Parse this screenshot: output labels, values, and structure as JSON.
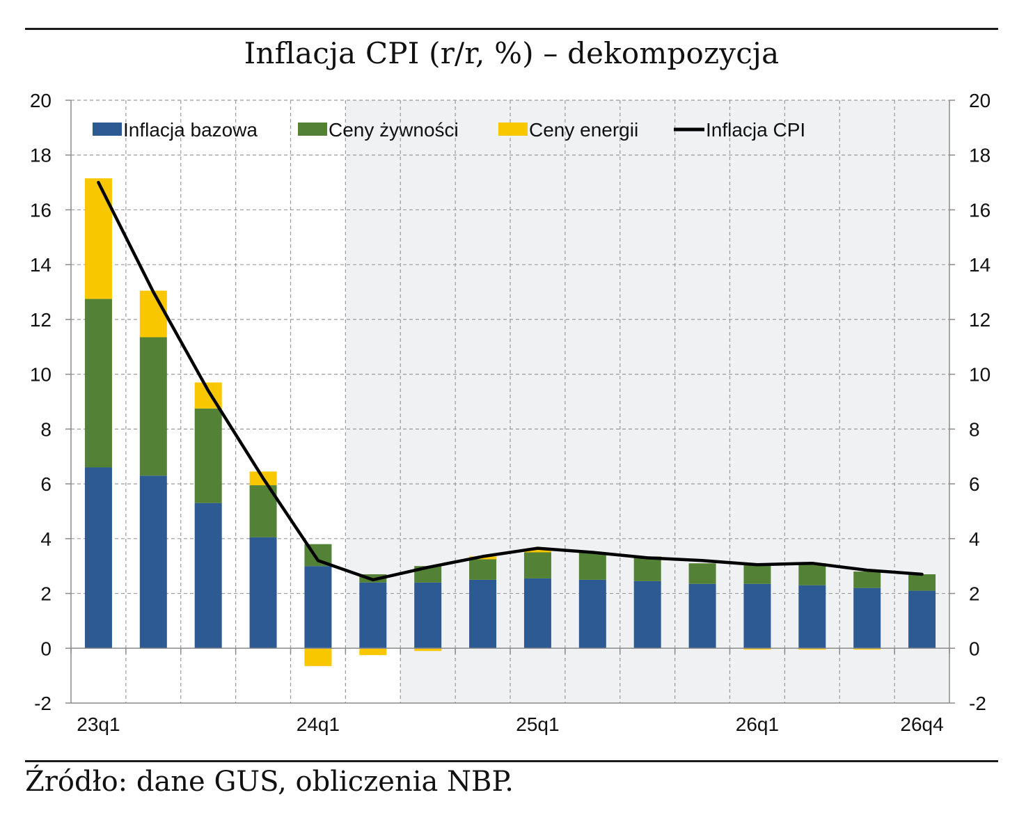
{
  "title": "Inflacja CPI (r/r, %) – dekompozycja",
  "source": "Źródło: dane GUS, obliczenia NBP.",
  "colors": {
    "core": "#2e5a94",
    "food": "#538135",
    "energy": "#f8c700",
    "cpi": "#000000",
    "forecast_bg": "#f0f1f3"
  },
  "chart_data": {
    "type": "bar",
    "stacked": true,
    "categories": [
      "23q1",
      "23q2",
      "23q3",
      "23q4",
      "24q1",
      "24q2",
      "24q3",
      "24q4",
      "25q1",
      "25q2",
      "25q3",
      "25q4",
      "26q1",
      "26q2",
      "26q3",
      "26q4"
    ],
    "x_tick_labels": [
      "23q1",
      "24q1",
      "25q1",
      "26q1",
      "26q4"
    ],
    "series": [
      {
        "name": "Inflacja bazowa",
        "type": "bar",
        "values": [
          6.6,
          6.3,
          5.3,
          4.05,
          3.0,
          2.4,
          2.4,
          2.5,
          2.55,
          2.5,
          2.45,
          2.35,
          2.35,
          2.3,
          2.2,
          2.1
        ]
      },
      {
        "name": "Ceny żywności",
        "type": "bar",
        "values": [
          6.15,
          5.05,
          3.45,
          1.9,
          0.8,
          0.3,
          0.6,
          0.75,
          0.95,
          1.0,
          0.9,
          0.75,
          0.7,
          0.8,
          0.6,
          0.6
        ]
      },
      {
        "name": "Ceny energii",
        "type": "bar",
        "values": [
          4.4,
          1.7,
          0.95,
          0.5,
          -0.65,
          -0.25,
          -0.1,
          0.1,
          0.1,
          0.0,
          0.0,
          0.0,
          -0.05,
          -0.05,
          -0.05,
          0.0
        ]
      },
      {
        "name": "Inflacja CPI",
        "type": "line",
        "values": [
          17.0,
          13.0,
          9.4,
          6.2,
          3.2,
          2.5,
          2.95,
          3.35,
          3.65,
          3.5,
          3.3,
          3.2,
          3.05,
          3.1,
          2.85,
          2.7
        ]
      }
    ],
    "forecast_start": "24q2",
    "forecast_full_start": "24q3",
    "ylim": [
      -2,
      20
    ],
    "yticks": [
      -2,
      0,
      2,
      4,
      6,
      8,
      10,
      12,
      14,
      16,
      18,
      20
    ],
    "y_axis_both_sides": true,
    "grid": true,
    "legend_position": "top"
  }
}
